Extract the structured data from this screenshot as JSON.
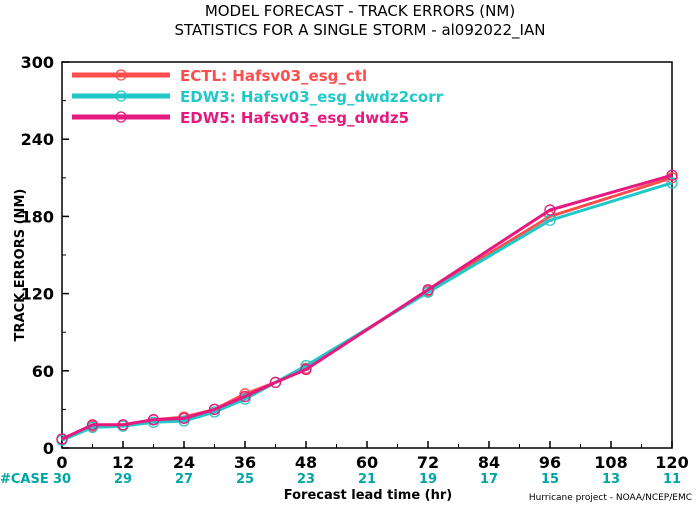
{
  "chart_data": {
    "type": "line",
    "title": "MODEL FORECAST - TRACK ERRORS (NM)",
    "subtitle": "STATISTICS FOR A SINGLE STORM - al092022_IAN",
    "xlabel": "Forecast lead time (hr)",
    "ylabel": "TRACK ERRORS (NM)",
    "xlim": [
      0,
      120
    ],
    "ylim": [
      0,
      300
    ],
    "x_ticks": [
      "0",
      "12",
      "24",
      "36",
      "48",
      "60",
      "72",
      "84",
      "96",
      "108",
      "120"
    ],
    "y_ticks": [
      "0",
      "60",
      "120",
      "180",
      "240",
      "300"
    ],
    "y_tick_values": [
      0,
      60,
      120,
      180,
      240,
      300
    ],
    "x": [
      0,
      6,
      12,
      18,
      24,
      30,
      36,
      42,
      48,
      72,
      96,
      120
    ],
    "series": [
      {
        "name": "ECTL: Hafsv03_esg_ctl",
        "color": "#ff4d4d",
        "values": [
          7,
          17,
          18,
          22,
          24,
          30,
          42,
          51,
          62,
          122,
          180,
          210
        ]
      },
      {
        "name": "EDW3: Hafsv03_esg_dwdz2corr",
        "color": "#20c8c8",
        "values": [
          6,
          16,
          17,
          20,
          21,
          28,
          38,
          51,
          64,
          121,
          177,
          206
        ]
      },
      {
        "name": "EDW5: Hafsv03_esg_dwdz5",
        "color": "#e6197e",
        "values": [
          7,
          18,
          18,
          22,
          23,
          30,
          40,
          51,
          61,
          123,
          185,
          212
        ]
      }
    ],
    "case_label": "#CASE",
    "case_counts": [
      "30",
      "29",
      "27",
      "25",
      "23",
      "21",
      "19",
      "17",
      "15",
      "13",
      "11"
    ],
    "case_color": "#00a6a6",
    "legend_position": "top-left",
    "grid": false
  },
  "credit": "Hurricane project - NOAA/NCEP/EMC"
}
